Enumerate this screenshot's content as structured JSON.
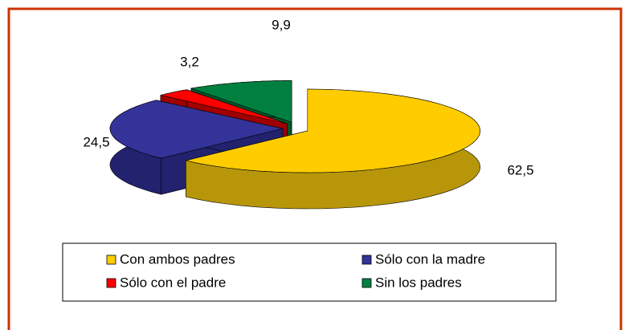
{
  "chart_data": {
    "type": "pie3d",
    "categories": [
      "Con ambos padres",
      "Sólo con la madre",
      "Sólo con el padre",
      "Sin  los padres"
    ],
    "values": [
      62.5,
      24.5,
      3.2,
      9.9
    ],
    "value_labels": [
      "62,5",
      "24,5",
      "3,2",
      "9,9"
    ],
    "colors": [
      "#FFCC00",
      "#333399",
      "#FF0000",
      "#008040"
    ],
    "side_colors": [
      "#B8960A",
      "#22226E",
      "#A00000",
      "#00552A"
    ]
  }
}
